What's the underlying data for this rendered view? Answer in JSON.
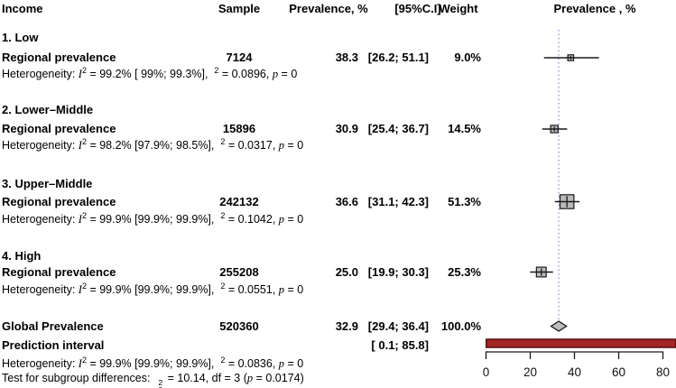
{
  "table": {
    "headers": {
      "income": "Income",
      "sample": "Sample",
      "prevalence": "Prevalence, %",
      "ci": "[95%C.I]",
      "weight": "Weight",
      "plot": "Prevalence , %"
    },
    "groups": [
      {
        "label": "1. Low",
        "row_label": "Regional prevalence",
        "sample": "7124",
        "prevalence": "38.3",
        "ci": "[26.2; 51.1]",
        "weight": "9.0%",
        "het_segments": [
          {
            "t": "Heterogeneity: "
          },
          {
            "t": "I",
            "i": true
          },
          {
            "t": "2",
            "sup": true
          },
          {
            "t": " = 99.2% [ 99%; 99.3%],  "
          },
          {
            "t": "2",
            "sup": true
          },
          {
            "t": " = 0.0896, "
          },
          {
            "t": "p",
            "i": true
          },
          {
            "t": " = 0"
          }
        ]
      },
      {
        "label": "2. Lower–Middle",
        "row_label": "Regional prevalence",
        "sample": "15896",
        "prevalence": "30.9",
        "ci": "[25.4; 36.7]",
        "weight": "14.5%",
        "het_segments": [
          {
            "t": "Heterogeneity: "
          },
          {
            "t": "I",
            "i": true
          },
          {
            "t": "2",
            "sup": true
          },
          {
            "t": " = 98.2% [97.9%; 98.5%],  "
          },
          {
            "t": "2",
            "sup": true
          },
          {
            "t": " = 0.0317, "
          },
          {
            "t": "p",
            "i": true
          },
          {
            "t": " = 0"
          }
        ]
      },
      {
        "label": "3. Upper–Middle",
        "row_label": "Regional prevalence",
        "sample": "242132",
        "prevalence": "36.6",
        "ci": "[31.1; 42.3]",
        "weight": "51.3%",
        "het_segments": [
          {
            "t": "Heterogeneity: "
          },
          {
            "t": "I",
            "i": true
          },
          {
            "t": "2",
            "sup": true
          },
          {
            "t": " = 99.9% [99.9%; 99.9%],  "
          },
          {
            "t": "2",
            "sup": true
          },
          {
            "t": " = 0.1042, "
          },
          {
            "t": "p",
            "i": true
          },
          {
            "t": " = 0"
          }
        ]
      },
      {
        "label": "4. High",
        "row_label": "Regional prevalence",
        "sample": "255208",
        "prevalence": "25.0",
        "ci": "[19.9; 30.3]",
        "weight": "25.3%",
        "het_segments": [
          {
            "t": "Heterogeneity: "
          },
          {
            "t": "I",
            "i": true
          },
          {
            "t": "2",
            "sup": true
          },
          {
            "t": " = 99.9% [99.9%; 99.9%],  "
          },
          {
            "t": "2",
            "sup": true
          },
          {
            "t": " = 0.0551, "
          },
          {
            "t": "p",
            "i": true
          },
          {
            "t": " = 0"
          }
        ]
      }
    ],
    "global_row": {
      "label": "Global Prevalence",
      "sample": "520360",
      "prevalence": "32.9",
      "ci": "[29.4; 36.4]",
      "weight": "100.0%"
    },
    "prediction_row": {
      "label": "Prediction interval",
      "ci": "[ 0.1; 85.8]"
    },
    "overall_het_segments": [
      {
        "t": "Heterogeneity: "
      },
      {
        "t": "I",
        "i": true
      },
      {
        "t": "2",
        "sup": true
      },
      {
        "t": " = 99.9% [99.9%; 99.9%],  "
      },
      {
        "t": "2",
        "sup": true
      },
      {
        "t": " = 0.0836, "
      },
      {
        "t": "p",
        "i": true
      },
      {
        "t": " = 0"
      }
    ],
    "subgroup_test_segments": [
      {
        "t": "Test for subgroup differences:  "
      },
      {
        "stack": [
          "2",
          "3"
        ]
      },
      {
        "t": " = 10.14, df = 3 ("
      },
      {
        "t": "p",
        "i": true
      },
      {
        "t": " = 0.0174)"
      }
    ]
  },
  "chart_data": {
    "type": "forest",
    "title": "Prevalence , %",
    "x_axis": {
      "min": 0,
      "max": 80,
      "ticks": [
        0,
        20,
        40,
        60,
        80
      ]
    },
    "reference_line": 32.9,
    "studies": [
      {
        "group": "1. Low",
        "label": "Regional prevalence",
        "sample": 7124,
        "est": 38.3,
        "lo": 26.2,
        "hi": 51.1,
        "weight_pct": 9.0
      },
      {
        "group": "2. Lower–Middle",
        "label": "Regional prevalence",
        "sample": 15896,
        "est": 30.9,
        "lo": 25.4,
        "hi": 36.7,
        "weight_pct": 14.5
      },
      {
        "group": "3. Upper–Middle",
        "label": "Regional prevalence",
        "sample": 242132,
        "est": 36.6,
        "lo": 31.1,
        "hi": 42.3,
        "weight_pct": 51.3
      },
      {
        "group": "4. High",
        "label": "Regional prevalence",
        "sample": 255208,
        "est": 25.0,
        "lo": 19.9,
        "hi": 30.3,
        "weight_pct": 25.3
      }
    ],
    "global": {
      "label": "Global Prevalence",
      "sample": 520360,
      "est": 32.9,
      "lo": 29.4,
      "hi": 36.4,
      "weight_pct": 100.0
    },
    "prediction_interval": {
      "lo": 0.1,
      "hi": 85.8
    },
    "colors": {
      "square_fill": "#b9b9b9",
      "square_border": "#1a1a1a",
      "ci_line": "#1a1a1a",
      "diamond_fill": "#bdbdbd",
      "diamond_border": "#111111",
      "prediction_fill": "#a32626",
      "prediction_border": "#570d0d",
      "reference_line": "#9a9ad6",
      "axis": "#1a1a1a"
    }
  }
}
